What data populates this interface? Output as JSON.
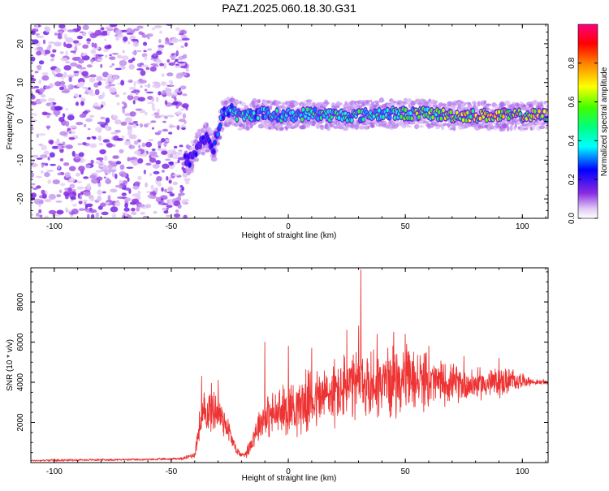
{
  "figure_title": "PAZ1.2025.060.18.30.G31",
  "chart_data": [
    {
      "type": "heatmap",
      "title": "PAZ1.2025.060.18.30.G31",
      "xlabel": "Height of straight line (km)",
      "ylabel": "Frequency (Hz)",
      "xlim": [
        -110,
        111
      ],
      "ylim": [
        -25,
        25
      ],
      "x_ticks": [
        "-100",
        "-50",
        "0",
        "50",
        "100"
      ],
      "x_tick_values": [
        -100,
        -50,
        0,
        50,
        100
      ],
      "y_ticks": [
        "20",
        "10",
        "0",
        "-10",
        "-20"
      ],
      "y_tick_values": [
        20,
        10,
        0,
        -10,
        -20
      ],
      "colorbar": {
        "label": "Normalized spectral amplitude",
        "range": [
          0,
          1
        ],
        "ticks": [
          "0.0",
          "0.2",
          "0.4",
          "0.6",
          "0.8"
        ],
        "tick_values": [
          0,
          0.2,
          0.4,
          0.6,
          0.8
        ],
        "colormap": "rainbow (white-violet at 0 → blue → cyan → green → yellow → red → magenta at 1)"
      },
      "signal_track": {
        "x": [
          -42,
          -38,
          -35,
          -32,
          -28,
          -25,
          -20,
          -15,
          -10,
          -5,
          0,
          10,
          20,
          30,
          40,
          50,
          60,
          70,
          80,
          90,
          100,
          110
        ],
        "frequency_hz": [
          -10,
          -6,
          -4,
          -7,
          2,
          3,
          1,
          2,
          2,
          1.5,
          1.5,
          2,
          1.5,
          1.5,
          2,
          2,
          2,
          1.5,
          1.5,
          1.5,
          1.5,
          1.5
        ],
        "amplitude": [
          0.25,
          0.25,
          0.3,
          0.25,
          0.35,
          0.45,
          0.45,
          0.45,
          0.4,
          0.45,
          0.45,
          0.5,
          0.5,
          0.5,
          0.5,
          0.55,
          0.6,
          0.7,
          0.75,
          0.75,
          0.7,
          0.7
        ]
      },
      "noise_region_x": [
        -110,
        -43
      ]
    },
    {
      "type": "line",
      "xlabel": "Height of straight line (km)",
      "ylabel": "SNR (10 * v/v)",
      "xlim": [
        -110,
        111
      ],
      "ylim": [
        0,
        9700
      ],
      "x_ticks": [
        "-100",
        "-50",
        "0",
        "50",
        "100"
      ],
      "x_tick_values": [
        -100,
        -50,
        0,
        50,
        100
      ],
      "y_ticks": [
        "2000",
        "4000",
        "6000",
        "8000"
      ],
      "y_tick_values": [
        2000,
        4000,
        6000,
        8000
      ],
      "color": "#ee3333",
      "series": [
        {
          "x": [
            -110,
            -100,
            -80,
            -60,
            -45,
            -40,
            -38,
            -36,
            -34,
            -32,
            -30,
            -28,
            -26,
            -24,
            -22,
            -20,
            -18,
            -16,
            -14,
            -12,
            -10,
            -5,
            0,
            5,
            10,
            15,
            20,
            25,
            30,
            32,
            35,
            40,
            45,
            50,
            55,
            60,
            65,
            70,
            75,
            80,
            85,
            90,
            95,
            100,
            105,
            111
          ],
          "y": [
            100,
            120,
            140,
            150,
            200,
            400,
            1800,
            2400,
            2600,
            2700,
            2500,
            2200,
            1800,
            1100,
            600,
            350,
            500,
            900,
            1600,
            2000,
            2300,
            2400,
            2700,
            2900,
            3100,
            3300,
            3500,
            3700,
            3800,
            3900,
            3900,
            4000,
            4100,
            4100,
            4100,
            4000,
            4000,
            3950,
            3900,
            3900,
            3950,
            4000,
            4050,
            4100,
            4000,
            4000
          ],
          "spread": [
            50,
            60,
            60,
            60,
            80,
            200,
            900,
            1300,
            1400,
            1400,
            1200,
            1100,
            800,
            500,
            250,
            150,
            300,
            500,
            800,
            1000,
            1200,
            1400,
            1600,
            1700,
            1800,
            1900,
            2000,
            2000,
            2100,
            2200,
            2100,
            2000,
            2000,
            1900,
            1800,
            1500,
            1300,
            1100,
            1000,
            900,
            900,
            900,
            800,
            400,
            150,
            150
          ],
          "peaks": [
            [
              -37,
              4300
            ],
            [
              -30,
              4100
            ],
            [
              -10,
              6000
            ],
            [
              0,
              5800
            ],
            [
              10,
              5700
            ],
            [
              25,
              6600
            ],
            [
              30,
              6800
            ],
            [
              31,
              9600
            ],
            [
              38,
              6400
            ],
            [
              45,
              6500
            ],
            [
              50,
              6400
            ],
            [
              60,
              5800
            ],
            [
              75,
              5300
            ],
            [
              90,
              5200
            ]
          ]
        }
      ]
    }
  ]
}
